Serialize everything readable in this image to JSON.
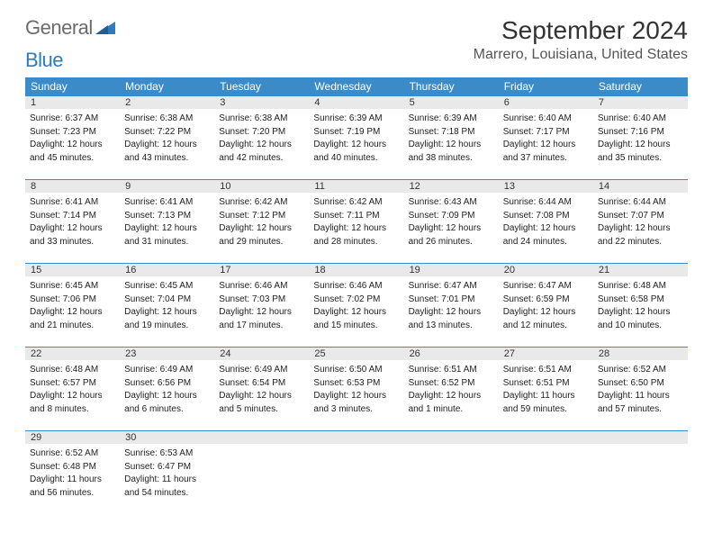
{
  "logo": {
    "text1": "General",
    "text2": "Blue"
  },
  "title": "September 2024",
  "location": "Marrero, Louisiana, United States",
  "colors": {
    "header_bg": "#3b8bc9",
    "header_text": "#ffffff",
    "daynum_bg": "#e9e9e9",
    "border": "#3b8bc9",
    "logo_gray": "#6b6b6b",
    "logo_blue": "#2f7bbf"
  },
  "weekdays": [
    "Sunday",
    "Monday",
    "Tuesday",
    "Wednesday",
    "Thursday",
    "Friday",
    "Saturday"
  ],
  "weeks": [
    [
      {
        "n": "1",
        "sr": "Sunrise: 6:37 AM",
        "ss": "Sunset: 7:23 PM",
        "d1": "Daylight: 12 hours",
        "d2": "and 45 minutes."
      },
      {
        "n": "2",
        "sr": "Sunrise: 6:38 AM",
        "ss": "Sunset: 7:22 PM",
        "d1": "Daylight: 12 hours",
        "d2": "and 43 minutes."
      },
      {
        "n": "3",
        "sr": "Sunrise: 6:38 AM",
        "ss": "Sunset: 7:20 PM",
        "d1": "Daylight: 12 hours",
        "d2": "and 42 minutes."
      },
      {
        "n": "4",
        "sr": "Sunrise: 6:39 AM",
        "ss": "Sunset: 7:19 PM",
        "d1": "Daylight: 12 hours",
        "d2": "and 40 minutes."
      },
      {
        "n": "5",
        "sr": "Sunrise: 6:39 AM",
        "ss": "Sunset: 7:18 PM",
        "d1": "Daylight: 12 hours",
        "d2": "and 38 minutes."
      },
      {
        "n": "6",
        "sr": "Sunrise: 6:40 AM",
        "ss": "Sunset: 7:17 PM",
        "d1": "Daylight: 12 hours",
        "d2": "and 37 minutes."
      },
      {
        "n": "7",
        "sr": "Sunrise: 6:40 AM",
        "ss": "Sunset: 7:16 PM",
        "d1": "Daylight: 12 hours",
        "d2": "and 35 minutes."
      }
    ],
    [
      {
        "n": "8",
        "sr": "Sunrise: 6:41 AM",
        "ss": "Sunset: 7:14 PM",
        "d1": "Daylight: 12 hours",
        "d2": "and 33 minutes."
      },
      {
        "n": "9",
        "sr": "Sunrise: 6:41 AM",
        "ss": "Sunset: 7:13 PM",
        "d1": "Daylight: 12 hours",
        "d2": "and 31 minutes."
      },
      {
        "n": "10",
        "sr": "Sunrise: 6:42 AM",
        "ss": "Sunset: 7:12 PM",
        "d1": "Daylight: 12 hours",
        "d2": "and 29 minutes."
      },
      {
        "n": "11",
        "sr": "Sunrise: 6:42 AM",
        "ss": "Sunset: 7:11 PM",
        "d1": "Daylight: 12 hours",
        "d2": "and 28 minutes."
      },
      {
        "n": "12",
        "sr": "Sunrise: 6:43 AM",
        "ss": "Sunset: 7:09 PM",
        "d1": "Daylight: 12 hours",
        "d2": "and 26 minutes."
      },
      {
        "n": "13",
        "sr": "Sunrise: 6:44 AM",
        "ss": "Sunset: 7:08 PM",
        "d1": "Daylight: 12 hours",
        "d2": "and 24 minutes."
      },
      {
        "n": "14",
        "sr": "Sunrise: 6:44 AM",
        "ss": "Sunset: 7:07 PM",
        "d1": "Daylight: 12 hours",
        "d2": "and 22 minutes."
      }
    ],
    [
      {
        "n": "15",
        "sr": "Sunrise: 6:45 AM",
        "ss": "Sunset: 7:06 PM",
        "d1": "Daylight: 12 hours",
        "d2": "and 21 minutes."
      },
      {
        "n": "16",
        "sr": "Sunrise: 6:45 AM",
        "ss": "Sunset: 7:04 PM",
        "d1": "Daylight: 12 hours",
        "d2": "and 19 minutes."
      },
      {
        "n": "17",
        "sr": "Sunrise: 6:46 AM",
        "ss": "Sunset: 7:03 PM",
        "d1": "Daylight: 12 hours",
        "d2": "and 17 minutes."
      },
      {
        "n": "18",
        "sr": "Sunrise: 6:46 AM",
        "ss": "Sunset: 7:02 PM",
        "d1": "Daylight: 12 hours",
        "d2": "and 15 minutes."
      },
      {
        "n": "19",
        "sr": "Sunrise: 6:47 AM",
        "ss": "Sunset: 7:01 PM",
        "d1": "Daylight: 12 hours",
        "d2": "and 13 minutes."
      },
      {
        "n": "20",
        "sr": "Sunrise: 6:47 AM",
        "ss": "Sunset: 6:59 PM",
        "d1": "Daylight: 12 hours",
        "d2": "and 12 minutes."
      },
      {
        "n": "21",
        "sr": "Sunrise: 6:48 AM",
        "ss": "Sunset: 6:58 PM",
        "d1": "Daylight: 12 hours",
        "d2": "and 10 minutes."
      }
    ],
    [
      {
        "n": "22",
        "sr": "Sunrise: 6:48 AM",
        "ss": "Sunset: 6:57 PM",
        "d1": "Daylight: 12 hours",
        "d2": "and 8 minutes."
      },
      {
        "n": "23",
        "sr": "Sunrise: 6:49 AM",
        "ss": "Sunset: 6:56 PM",
        "d1": "Daylight: 12 hours",
        "d2": "and 6 minutes."
      },
      {
        "n": "24",
        "sr": "Sunrise: 6:49 AM",
        "ss": "Sunset: 6:54 PM",
        "d1": "Daylight: 12 hours",
        "d2": "and 5 minutes."
      },
      {
        "n": "25",
        "sr": "Sunrise: 6:50 AM",
        "ss": "Sunset: 6:53 PM",
        "d1": "Daylight: 12 hours",
        "d2": "and 3 minutes."
      },
      {
        "n": "26",
        "sr": "Sunrise: 6:51 AM",
        "ss": "Sunset: 6:52 PM",
        "d1": "Daylight: 12 hours",
        "d2": "and 1 minute."
      },
      {
        "n": "27",
        "sr": "Sunrise: 6:51 AM",
        "ss": "Sunset: 6:51 PM",
        "d1": "Daylight: 11 hours",
        "d2": "and 59 minutes."
      },
      {
        "n": "28",
        "sr": "Sunrise: 6:52 AM",
        "ss": "Sunset: 6:50 PM",
        "d1": "Daylight: 11 hours",
        "d2": "and 57 minutes."
      }
    ],
    [
      {
        "n": "29",
        "sr": "Sunrise: 6:52 AM",
        "ss": "Sunset: 6:48 PM",
        "d1": "Daylight: 11 hours",
        "d2": "and 56 minutes."
      },
      {
        "n": "30",
        "sr": "Sunrise: 6:53 AM",
        "ss": "Sunset: 6:47 PM",
        "d1": "Daylight: 11 hours",
        "d2": "and 54 minutes."
      },
      null,
      null,
      null,
      null,
      null
    ]
  ]
}
